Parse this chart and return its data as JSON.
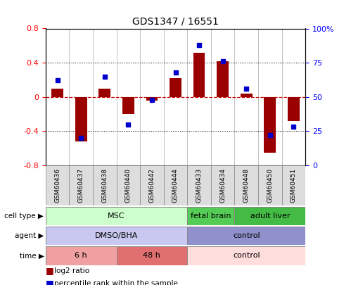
{
  "title": "GDS1347 / 16551",
  "samples": [
    "GSM60436",
    "GSM60437",
    "GSM60438",
    "GSM60440",
    "GSM60442",
    "GSM60444",
    "GSM60433",
    "GSM60434",
    "GSM60448",
    "GSM60450",
    "GSM60451"
  ],
  "log2_ratio": [
    0.1,
    -0.52,
    0.1,
    -0.2,
    -0.04,
    0.22,
    0.52,
    0.42,
    0.04,
    -0.65,
    -0.28
  ],
  "percentile_rank": [
    62,
    20,
    65,
    30,
    48,
    68,
    88,
    76,
    56,
    22,
    28
  ],
  "ylim_left": [
    -0.8,
    0.8
  ],
  "ylim_right": [
    0,
    100
  ],
  "yticks_left": [
    -0.8,
    -0.4,
    0.0,
    0.4,
    0.8
  ],
  "yticks_right": [
    0,
    25,
    50,
    75,
    100
  ],
  "bar_color": "#9B0000",
  "dot_color": "#0000CC",
  "zero_line_color": "#CC0000",
  "cell_type_groups": [
    {
      "label": "MSC",
      "start": 0,
      "end": 5,
      "color": "#CCFFCC"
    },
    {
      "label": "fetal brain",
      "start": 6,
      "end": 7,
      "color": "#55CC55"
    },
    {
      "label": "adult liver",
      "start": 8,
      "end": 10,
      "color": "#44BB44"
    }
  ],
  "agent_groups": [
    {
      "label": "DMSO/BHA",
      "start": 0,
      "end": 5,
      "color": "#C8C8F0"
    },
    {
      "label": "control",
      "start": 6,
      "end": 10,
      "color": "#9090CC"
    }
  ],
  "time_groups": [
    {
      "label": "6 h",
      "start": 0,
      "end": 2,
      "color": "#F0A0A0"
    },
    {
      "label": "48 h",
      "start": 3,
      "end": 5,
      "color": "#E07070"
    },
    {
      "label": "control",
      "start": 6,
      "end": 10,
      "color": "#FFDDDD"
    }
  ]
}
